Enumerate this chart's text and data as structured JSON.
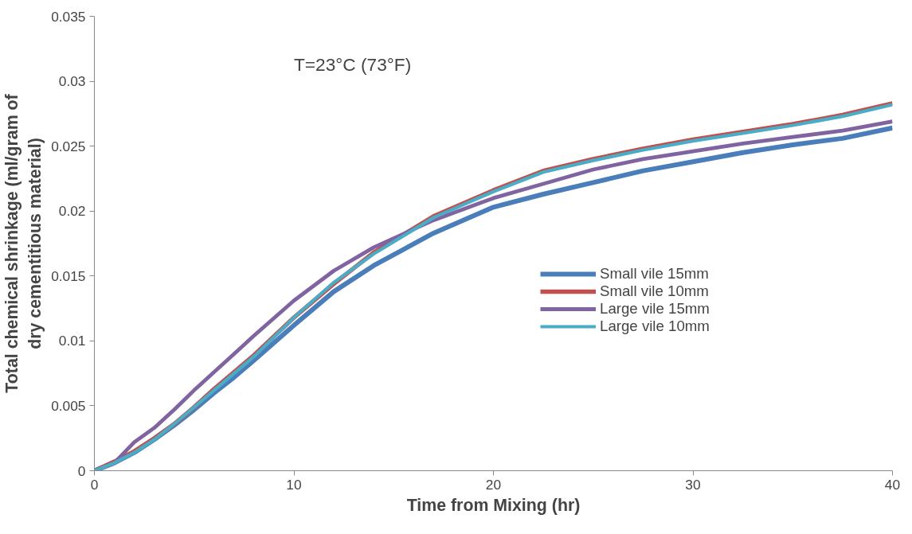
{
  "chart_data": {
    "type": "line",
    "xlabel": "Time from Mixing (hr)",
    "ylabel": "Total chemical shrinkage (ml/gram of dry cementitious material)",
    "annotations": [
      "T=23°C (73°F)"
    ],
    "x": [
      0,
      1,
      2,
      3,
      4,
      5,
      6,
      7,
      8,
      10,
      12,
      14,
      17,
      20,
      22.5,
      25,
      27.5,
      30,
      32.5,
      35,
      37.5,
      40
    ],
    "series": [
      {
        "name": "Small vile 15mm",
        "color": "#4a7ebb",
        "values": [
          0,
          0.0006,
          0.0014,
          0.0024,
          0.0035,
          0.0047,
          0.006,
          0.0072,
          0.0085,
          0.0112,
          0.0138,
          0.0158,
          0.0183,
          0.0203,
          0.0213,
          0.0222,
          0.0231,
          0.0238,
          0.0245,
          0.0251,
          0.0256,
          0.0264
        ]
      },
      {
        "name": "Small vile 10mm",
        "color": "#c0504d",
        "values": [
          0,
          0.0007,
          0.0015,
          0.0025,
          0.0036,
          0.0049,
          0.0063,
          0.0076,
          0.0089,
          0.0118,
          0.0144,
          0.0168,
          0.0196,
          0.0216,
          0.0231,
          0.024,
          0.0248,
          0.0255,
          0.0261,
          0.0267,
          0.0274,
          0.0283
        ]
      },
      {
        "name": "Large vile 15mm",
        "color": "#8064a2",
        "values": [
          0,
          0.0006,
          0.0022,
          0.0033,
          0.0047,
          0.0062,
          0.0076,
          0.009,
          0.0104,
          0.0131,
          0.0154,
          0.0172,
          0.0193,
          0.021,
          0.0221,
          0.0232,
          0.024,
          0.0246,
          0.0252,
          0.0257,
          0.0262,
          0.0269
        ]
      },
      {
        "name": "Large vile 10mm",
        "color": "#4bacc6",
        "values": [
          0,
          0.0006,
          0.0014,
          0.0024,
          0.0036,
          0.0049,
          0.0062,
          0.0075,
          0.0088,
          0.0118,
          0.0145,
          0.0167,
          0.0195,
          0.0215,
          0.023,
          0.0239,
          0.0247,
          0.0254,
          0.026,
          0.0266,
          0.0273,
          0.0282
        ]
      }
    ],
    "xlim": [
      0,
      40
    ],
    "xticks": [
      0,
      10,
      20,
      30,
      40
    ],
    "ylim": [
      0,
      0.035
    ],
    "yticks": [
      0,
      0.005,
      0.01,
      0.015,
      0.02,
      0.025,
      0.03,
      0.035
    ],
    "grid": false,
    "legend": "right",
    "line_style": "solid",
    "marker": "none"
  }
}
